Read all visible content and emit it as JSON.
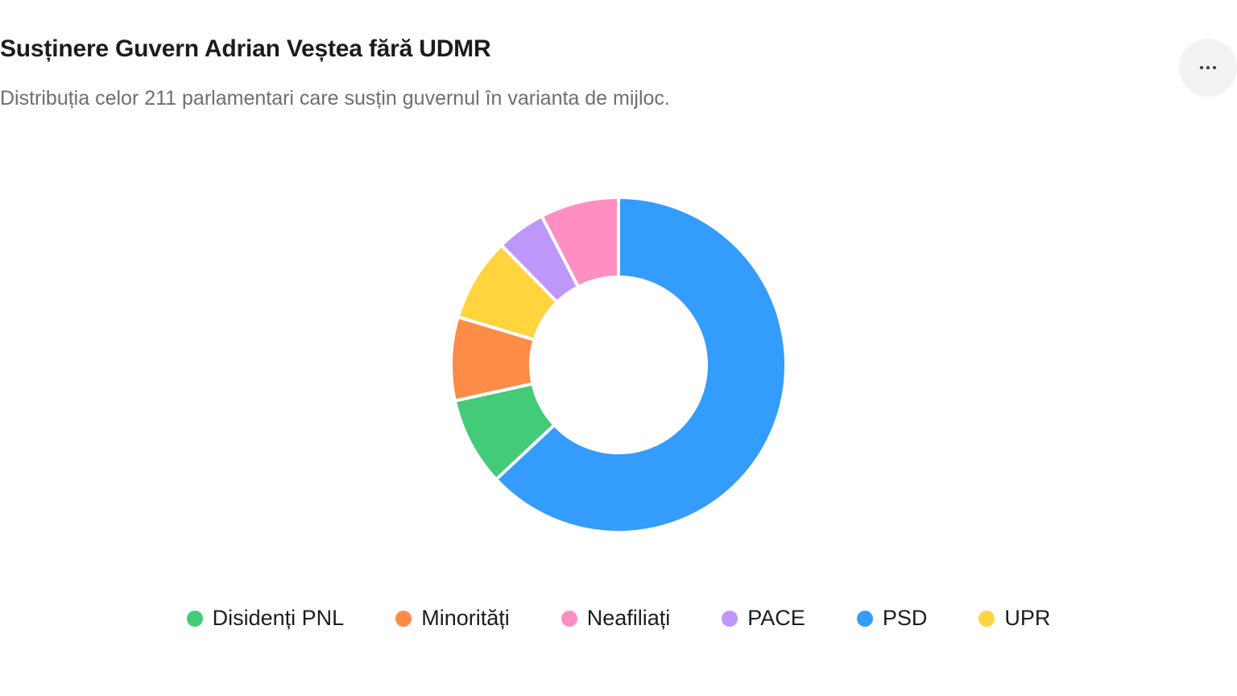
{
  "header": {
    "title": "Susținere Guvern Adrian Veștea fără UDMR",
    "subtitle": "Distribuția celor 211 parlamentari care susțin guvernul în varianta de mijloc."
  },
  "toolbar": {
    "more_icon": "more-horizontal-icon"
  },
  "chart_data": {
    "type": "pie",
    "variant": "donut",
    "title": "Susținere Guvern Adrian Veștea fără UDMR",
    "subtitle": "Distribuția celor 211 parlamentari care susțin guvernul în varianta de mijloc.",
    "total": 211,
    "legend_position": "bottom",
    "series": [
      {
        "name": "PSD",
        "value": 133,
        "color": "#349CFD"
      },
      {
        "name": "Disidenți PNL",
        "value": 18,
        "color": "#43CB79"
      },
      {
        "name": "Minorități",
        "value": 17,
        "color": "#FF8B48"
      },
      {
        "name": "UPR",
        "value": 17,
        "color": "#FFD43F"
      },
      {
        "name": "PACE",
        "value": 10,
        "color": "#BF97FB"
      },
      {
        "name": "Neafiliați",
        "value": 16,
        "color": "#FF8EC3"
      }
    ],
    "legend": [
      {
        "name": "Disidenți PNL",
        "color": "#43CB79"
      },
      {
        "name": "Minorități",
        "color": "#FF8B48"
      },
      {
        "name": "Neafiliați",
        "color": "#FF8EC3"
      },
      {
        "name": "PACE",
        "color": "#BF97FB"
      },
      {
        "name": "PSD",
        "color": "#349CFD"
      },
      {
        "name": "UPR",
        "color": "#FFD43F"
      }
    ]
  }
}
